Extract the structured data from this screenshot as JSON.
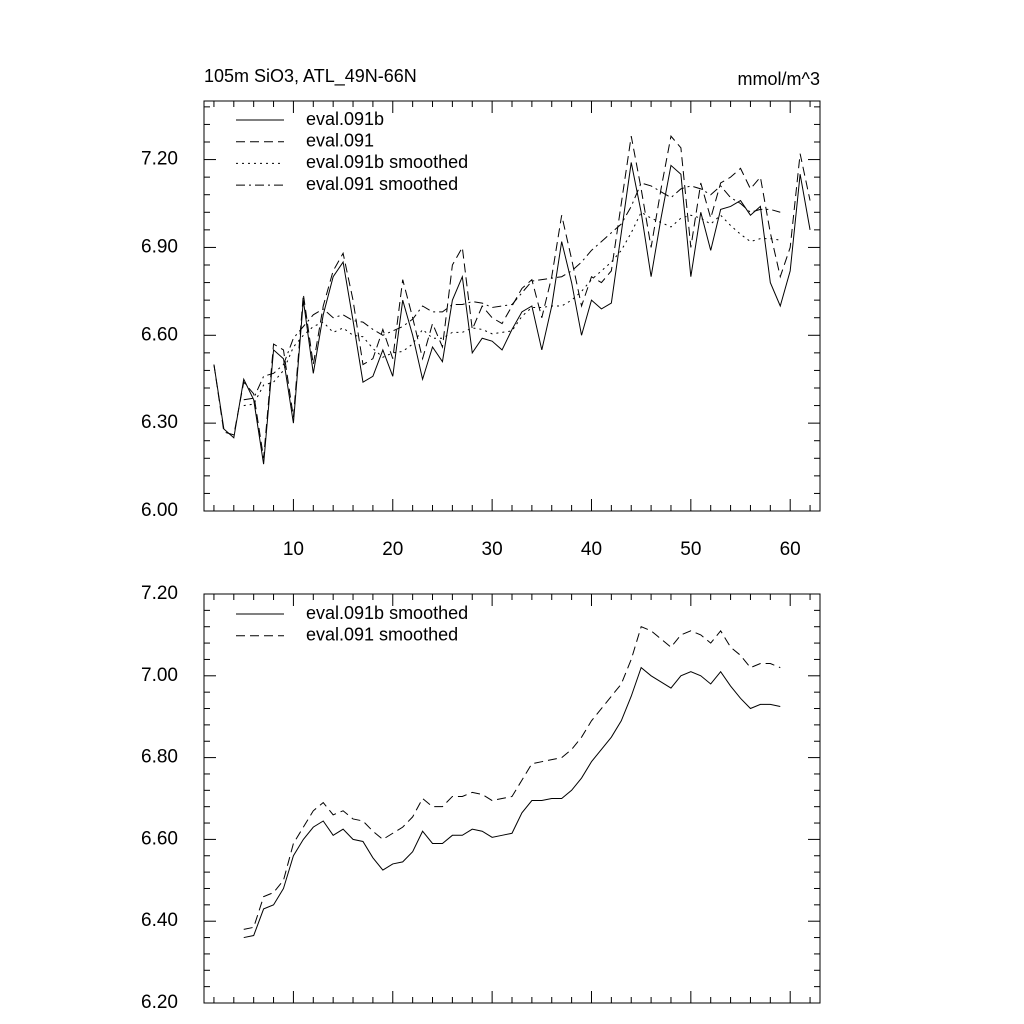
{
  "chart_data": [
    {
      "type": "line",
      "title": "105m SiO3, ATL_49N-66N",
      "unit_label": "mmol/m^3",
      "x": [
        2,
        3,
        4,
        5,
        6,
        7,
        8,
        9,
        10,
        11,
        12,
        13,
        14,
        15,
        16,
        17,
        18,
        19,
        20,
        21,
        22,
        23,
        24,
        25,
        26,
        27,
        28,
        29,
        30,
        31,
        32,
        33,
        34,
        35,
        36,
        37,
        38,
        39,
        40,
        41,
        42,
        43,
        44,
        45,
        46,
        47,
        48,
        49,
        50,
        51,
        52,
        53,
        54,
        55,
        56,
        57,
        58,
        59,
        60,
        61,
        62
      ],
      "xlim": [
        1,
        63
      ],
      "xticks": [
        10,
        20,
        30,
        40,
        50,
        60
      ],
      "ylim": [
        6.0,
        7.4
      ],
      "yticks": [
        {
          "value": 6.0,
          "label": "6.00"
        },
        {
          "value": 6.3,
          "label": "6.30"
        },
        {
          "value": 6.6,
          "label": "6.60"
        },
        {
          "value": 6.9,
          "label": "6.90"
        },
        {
          "value": 7.2,
          "label": "7.20"
        }
      ],
      "series": [
        {
          "name": "eval.091b",
          "color": "#000000",
          "dash": "solid",
          "values": [
            6.5,
            6.28,
            6.25,
            6.45,
            6.38,
            6.16,
            6.55,
            6.52,
            6.3,
            6.72,
            6.47,
            6.67,
            6.8,
            6.85,
            6.65,
            6.44,
            6.46,
            6.55,
            6.46,
            6.72,
            6.6,
            6.45,
            6.56,
            6.51,
            6.72,
            6.8,
            6.54,
            6.59,
            6.58,
            6.55,
            6.62,
            6.68,
            6.7,
            6.55,
            6.7,
            6.92,
            6.78,
            6.6,
            6.72,
            6.69,
            6.71,
            6.95,
            7.19,
            7.02,
            6.8,
            7.0,
            7.18,
            7.15,
            6.8,
            7.02,
            6.89,
            7.03,
            7.04,
            7.06,
            7.01,
            7.04,
            6.78,
            6.7,
            6.82,
            7.15,
            6.96
          ]
        },
        {
          "name": "eval.091",
          "color": "#000000",
          "dash": "dashed",
          "values": [
            6.5,
            6.27,
            6.26,
            6.44,
            6.4,
            6.18,
            6.57,
            6.55,
            6.32,
            6.74,
            6.5,
            6.7,
            6.82,
            6.88,
            6.72,
            6.5,
            6.52,
            6.62,
            6.52,
            6.79,
            6.66,
            6.52,
            6.64,
            6.56,
            6.84,
            6.9,
            6.62,
            6.7,
            6.66,
            6.64,
            6.7,
            6.76,
            6.79,
            6.66,
            6.8,
            7.01,
            6.86,
            6.7,
            6.8,
            6.78,
            6.82,
            7.05,
            7.28,
            7.1,
            6.9,
            7.1,
            7.28,
            7.24,
            6.9,
            7.12,
            7.0,
            7.12,
            7.14,
            7.17,
            7.1,
            7.14,
            6.95,
            6.8,
            6.9,
            7.22,
            7.06
          ]
        },
        {
          "name": "eval.091b smoothed",
          "color": "#000000",
          "dash": "dotted",
          "values": [
            null,
            null,
            null,
            6.36,
            6.365,
            6.43,
            6.44,
            6.48,
            6.56,
            6.6,
            6.63,
            6.645,
            6.61,
            6.625,
            6.6,
            6.595,
            6.555,
            6.525,
            6.54,
            6.545,
            6.57,
            6.62,
            6.59,
            6.59,
            6.61,
            6.61,
            6.625,
            6.62,
            6.605,
            6.61,
            6.615,
            6.665,
            6.695,
            6.695,
            6.7,
            6.7,
            6.72,
            6.75,
            6.79,
            6.82,
            6.85,
            6.89,
            6.95,
            7.02,
            7.0,
            6.985,
            6.97,
            7.0,
            7.01,
            7.0,
            6.98,
            7.01,
            6.975,
            6.945,
            6.92,
            6.93,
            6.93,
            6.925,
            null,
            null,
            null
          ]
        },
        {
          "name": "eval.091 smoothed",
          "color": "#000000",
          "dash": "dashdot",
          "values": [
            null,
            null,
            null,
            6.38,
            6.385,
            6.46,
            6.47,
            6.5,
            6.59,
            6.63,
            6.67,
            6.69,
            6.66,
            6.67,
            6.65,
            6.645,
            6.62,
            6.6,
            6.615,
            6.63,
            6.655,
            6.7,
            6.68,
            6.68,
            6.705,
            6.705,
            6.715,
            6.71,
            6.695,
            6.7,
            6.705,
            6.745,
            6.785,
            6.79,
            6.795,
            6.8,
            6.82,
            6.85,
            6.89,
            6.92,
            6.95,
            6.98,
            7.04,
            7.12,
            7.11,
            7.09,
            7.07,
            7.1,
            7.11,
            7.1,
            7.08,
            7.11,
            7.07,
            7.05,
            7.02,
            7.03,
            7.03,
            7.02,
            null,
            null,
            null
          ]
        }
      ]
    },
    {
      "type": "line",
      "x": [
        5,
        6,
        7,
        8,
        9,
        10,
        11,
        12,
        13,
        14,
        15,
        16,
        17,
        18,
        19,
        20,
        21,
        22,
        23,
        24,
        25,
        26,
        27,
        28,
        29,
        30,
        31,
        32,
        33,
        34,
        35,
        36,
        37,
        38,
        39,
        40,
        41,
        42,
        43,
        44,
        45,
        46,
        47,
        48,
        49,
        50,
        51,
        52,
        53,
        54,
        55,
        56,
        57,
        58,
        59
      ],
      "xlim": [
        1,
        63
      ],
      "xticks": [
        10,
        20,
        30,
        40,
        50,
        60
      ],
      "ylim": [
        6.2,
        7.2
      ],
      "yticks": [
        {
          "value": 6.2,
          "label": "6.20"
        },
        {
          "value": 6.4,
          "label": "6.40"
        },
        {
          "value": 6.6,
          "label": "6.60"
        },
        {
          "value": 6.8,
          "label": "6.80"
        },
        {
          "value": 7.0,
          "label": "7.00"
        },
        {
          "value": 7.2,
          "label": "7.20"
        }
      ],
      "series": [
        {
          "name": "eval.091b smoothed",
          "color": "#000000",
          "dash": "solid",
          "values": [
            6.36,
            6.365,
            6.43,
            6.44,
            6.48,
            6.56,
            6.6,
            6.63,
            6.645,
            6.61,
            6.625,
            6.6,
            6.595,
            6.555,
            6.525,
            6.54,
            6.545,
            6.57,
            6.62,
            6.59,
            6.59,
            6.61,
            6.61,
            6.625,
            6.62,
            6.605,
            6.61,
            6.615,
            6.665,
            6.695,
            6.695,
            6.7,
            6.7,
            6.72,
            6.75,
            6.79,
            6.82,
            6.85,
            6.89,
            6.95,
            7.02,
            7.0,
            6.985,
            6.97,
            7.0,
            7.01,
            7.0,
            6.98,
            7.01,
            6.975,
            6.945,
            6.92,
            6.93,
            6.93,
            6.925
          ]
        },
        {
          "name": "eval.091 smoothed",
          "color": "#000000",
          "dash": "dashed",
          "values": [
            6.38,
            6.385,
            6.46,
            6.47,
            6.5,
            6.59,
            6.63,
            6.67,
            6.69,
            6.66,
            6.67,
            6.65,
            6.645,
            6.62,
            6.6,
            6.615,
            6.63,
            6.655,
            6.7,
            6.68,
            6.68,
            6.705,
            6.705,
            6.715,
            6.71,
            6.695,
            6.7,
            6.705,
            6.745,
            6.785,
            6.79,
            6.795,
            6.8,
            6.82,
            6.85,
            6.89,
            6.92,
            6.95,
            6.98,
            7.04,
            7.12,
            7.11,
            7.09,
            7.07,
            7.1,
            7.11,
            7.1,
            7.08,
            7.11,
            7.07,
            7.05,
            7.02,
            7.03,
            7.03,
            7.02
          ]
        }
      ]
    }
  ]
}
